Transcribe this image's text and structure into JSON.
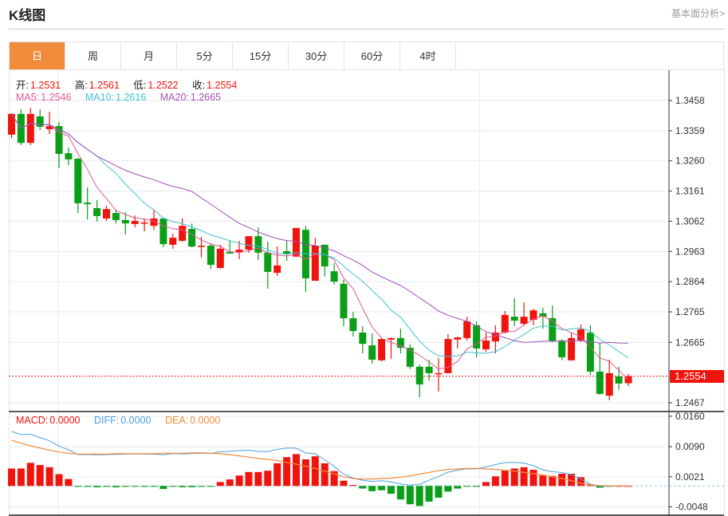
{
  "header": {
    "title": "K线图",
    "link_label": "基本面分析>"
  },
  "tabs": [
    {
      "label": "日",
      "active": true
    },
    {
      "label": "周"
    },
    {
      "label": "月"
    },
    {
      "label": "5分"
    },
    {
      "label": "15分"
    },
    {
      "label": "30分"
    },
    {
      "label": "60分"
    },
    {
      "label": "4时"
    }
  ],
  "ohlc_info": {
    "open_label": "开:",
    "open": "1.2531",
    "high_label": "高:",
    "high": "1.2561",
    "low_label": "低:",
    "low": "1.2522",
    "close_label": "收:",
    "close": "1.2554"
  },
  "ma_info": {
    "ma5_label": "MA5:",
    "ma5": "1.2546",
    "ma10_label": "MA10:",
    "ma10": "1.2616",
    "ma20_label": "MA20:",
    "ma20": "1.2665"
  },
  "macd_info": {
    "macd_label": "MACD:",
    "macd": "0.0000",
    "diff_label": "DIFF:",
    "diff": "0.0000",
    "dea_label": "DEA:",
    "dea": "0.0000"
  },
  "colors": {
    "up": "#f0140e",
    "down": "#0a9f16",
    "ma5": "#e8558e",
    "ma10": "#3fc1d4",
    "ma20": "#a24fb7",
    "diff": "#4a9fe0",
    "dea": "#f08c3c",
    "active_tab": "#f08c3c"
  },
  "chart_data": [
    {
      "type": "candlestick",
      "ylim": [
        1.244,
        1.35
      ],
      "y_ticks": [
        "1.3458",
        "1.3359",
        "1.3260",
        "1.3161",
        "1.3062",
        "1.2963",
        "1.2864",
        "1.2765",
        "1.2665",
        "1.2467"
      ],
      "last_price": "1.2554",
      "grid": true,
      "ma_periods": [
        5,
        10,
        20
      ],
      "candles": [
        [
          1.3346,
          1.3416,
          1.3335,
          1.3414
        ],
        [
          1.3414,
          1.3429,
          1.3312,
          1.3319
        ],
        [
          1.3319,
          1.3434,
          1.3312,
          1.3414
        ],
        [
          1.3406,
          1.3429,
          1.3361,
          1.3372
        ],
        [
          1.3364,
          1.3421,
          1.3348,
          1.3374
        ],
        [
          1.3374,
          1.3387,
          1.3236,
          1.3283
        ],
        [
          1.3285,
          1.3304,
          1.3246,
          1.3265
        ],
        [
          1.3267,
          1.327,
          1.3089,
          1.3121
        ],
        [
          1.3123,
          1.3173,
          1.3068,
          1.3118
        ],
        [
          1.3105,
          1.3131,
          1.3061,
          1.3079
        ],
        [
          1.3071,
          1.3113,
          1.3063,
          1.3102
        ],
        [
          1.3089,
          1.31,
          1.3055,
          1.3066
        ],
        [
          1.3066,
          1.3092,
          1.3019,
          1.3055
        ],
        [
          1.3053,
          1.3081,
          1.3042,
          1.3063
        ],
        [
          1.3055,
          1.3071,
          1.3029,
          1.3058
        ],
        [
          1.3047,
          1.31,
          1.3034,
          1.3071
        ],
        [
          1.3071,
          1.3074,
          1.2977,
          1.2987
        ],
        [
          1.2985,
          1.3021,
          1.2972,
          1.3008
        ],
        [
          1.2998,
          1.3071,
          1.2995,
          1.3047
        ],
        [
          1.3037,
          1.3055,
          1.2977,
          1.2979
        ],
        [
          1.2979,
          1.3011,
          1.2943,
          1.2982
        ],
        [
          1.2982,
          1.299,
          1.2906,
          1.2919
        ],
        [
          1.2909,
          1.2985,
          1.2906,
          1.2972
        ],
        [
          1.2961,
          1.2998,
          1.2956,
          1.2956
        ],
        [
          1.2961,
          1.2998,
          1.2938,
          1.2969
        ],
        [
          1.2969,
          1.3013,
          1.2959,
          1.3013
        ],
        [
          1.3013,
          1.3042,
          1.2935,
          1.2959
        ],
        [
          1.2959,
          1.2995,
          1.2841,
          1.2896
        ],
        [
          1.2893,
          1.2979,
          1.2883,
          1.2917
        ],
        [
          1.2964,
          1.2998,
          1.2932,
          1.2956
        ],
        [
          1.2946,
          1.304,
          1.2946,
          1.304
        ],
        [
          1.3034,
          1.3047,
          1.283,
          1.2875
        ],
        [
          1.2867,
          1.3008,
          1.2867,
          1.2982
        ],
        [
          1.2985,
          1.2985,
          1.288,
          1.2914
        ],
        [
          1.2898,
          1.2925,
          1.2854,
          1.2864
        ],
        [
          1.2857,
          1.287,
          1.2718,
          1.2744
        ],
        [
          1.2744,
          1.2765,
          1.2684,
          1.2702
        ],
        [
          1.2697,
          1.2718,
          1.2629,
          1.266
        ],
        [
          1.2655,
          1.2694,
          1.2595,
          1.2608
        ],
        [
          1.2606,
          1.2676,
          1.2603,
          1.2676
        ],
        [
          1.2674,
          1.2681,
          1.2611,
          1.2679
        ],
        [
          1.2679,
          1.271,
          1.2629,
          1.2647
        ],
        [
          1.2647,
          1.2658,
          1.2577,
          1.2585
        ],
        [
          1.2585,
          1.2592,
          1.2485,
          1.2527
        ],
        [
          1.2585,
          1.2608,
          1.254,
          1.2564
        ],
        [
          1.2561,
          1.2613,
          1.2504,
          1.2564
        ],
        [
          1.2564,
          1.2692,
          1.2564,
          1.2676
        ],
        [
          1.2674,
          1.2684,
          1.2645,
          1.2681
        ],
        [
          1.2679,
          1.2749,
          1.2671,
          1.2734
        ],
        [
          1.2721,
          1.2734,
          1.2616,
          1.2645
        ],
        [
          1.2642,
          1.2697,
          1.2634,
          1.2671
        ],
        [
          1.2668,
          1.2721,
          1.2629,
          1.2697
        ],
        [
          1.2697,
          1.2768,
          1.2694,
          1.2755
        ],
        [
          1.2749,
          1.281,
          1.2718,
          1.2736
        ],
        [
          1.2726,
          1.2796,
          1.2721,
          1.2749
        ],
        [
          1.2739,
          1.2775,
          1.2721,
          1.277
        ],
        [
          1.276,
          1.2778,
          1.271,
          1.2749
        ],
        [
          1.2744,
          1.2786,
          1.2666,
          1.2668
        ],
        [
          1.2671,
          1.2676,
          1.2606,
          1.2616
        ],
        [
          1.2606,
          1.2697,
          1.2606,
          1.2679
        ],
        [
          1.2671,
          1.2723,
          1.2666,
          1.2708
        ],
        [
          1.2697,
          1.2721,
          1.2558,
          1.2569
        ],
        [
          1.2569,
          1.2663,
          1.2493,
          1.2496
        ],
        [
          1.249,
          1.2608,
          1.2475,
          1.2564
        ],
        [
          1.2553,
          1.2585,
          1.2509,
          1.253
        ],
        [
          1.2531,
          1.2561,
          1.2522,
          1.2554
        ]
      ]
    },
    {
      "type": "bar",
      "ylim": [
        -0.0055,
        0.017
      ],
      "y_ticks": [
        "0.0160",
        "0.0090",
        "0.0021",
        "-0.0048"
      ],
      "macd_hist": [
        0.004,
        0.004,
        0.0053,
        0.0048,
        0.0043,
        0.0027,
        0.0016,
        -0.0002,
        -0.0002,
        -0.0003,
        -0.0002,
        -0.0003,
        -0.0002,
        -0.0001,
        -0.0002,
        -0.0002,
        -0.0007,
        -0.0001,
        -0.0003,
        -0.0003,
        -0.0002,
        -0.0001,
        0.0009,
        0.0015,
        0.0024,
        0.0032,
        0.0032,
        0.0035,
        0.0052,
        0.0066,
        0.0073,
        0.0061,
        0.0068,
        0.0052,
        0.0034,
        0.0012,
        0.0002,
        -0.0006,
        -0.0012,
        -0.001,
        -0.0018,
        -0.0031,
        -0.0042,
        -0.0046,
        -0.0036,
        -0.0027,
        -0.0013,
        -0.0006,
        -0.0001,
        -0.0002,
        0.0009,
        0.0022,
        0.0035,
        0.004,
        0.0043,
        0.0037,
        0.0024,
        0.0023,
        0.0028,
        0.0028,
        0.002,
        0.0002,
        -0.0004,
        -0.0001,
        0.0,
        0.0
      ],
      "dea": [
        0.0105,
        0.0098,
        0.0092,
        0.0087,
        0.0082,
        0.0078,
        0.0075,
        0.0073,
        0.0073,
        0.0073,
        0.0073,
        0.0074,
        0.0074,
        0.0074,
        0.0074,
        0.0074,
        0.0075,
        0.0075,
        0.0075,
        0.0076,
        0.0076,
        0.0075,
        0.0074,
        0.0072,
        0.0069,
        0.0066,
        0.0063,
        0.0061,
        0.0058,
        0.0054,
        0.005,
        0.0045,
        0.004,
        0.0034,
        0.0028,
        0.0021,
        0.0017,
        0.0016,
        0.0016,
        0.0017,
        0.0018,
        0.002,
        0.0023,
        0.0027,
        0.0031,
        0.0035,
        0.0038,
        0.0039,
        0.004,
        0.004,
        0.0039,
        0.0038,
        0.0036,
        0.0034,
        0.0031,
        0.0028,
        0.0025,
        0.0021,
        0.0017,
        0.0012,
        0.0006,
        0.0003,
        0.0001,
        0.0,
        0.0,
        0.0
      ]
    }
  ]
}
